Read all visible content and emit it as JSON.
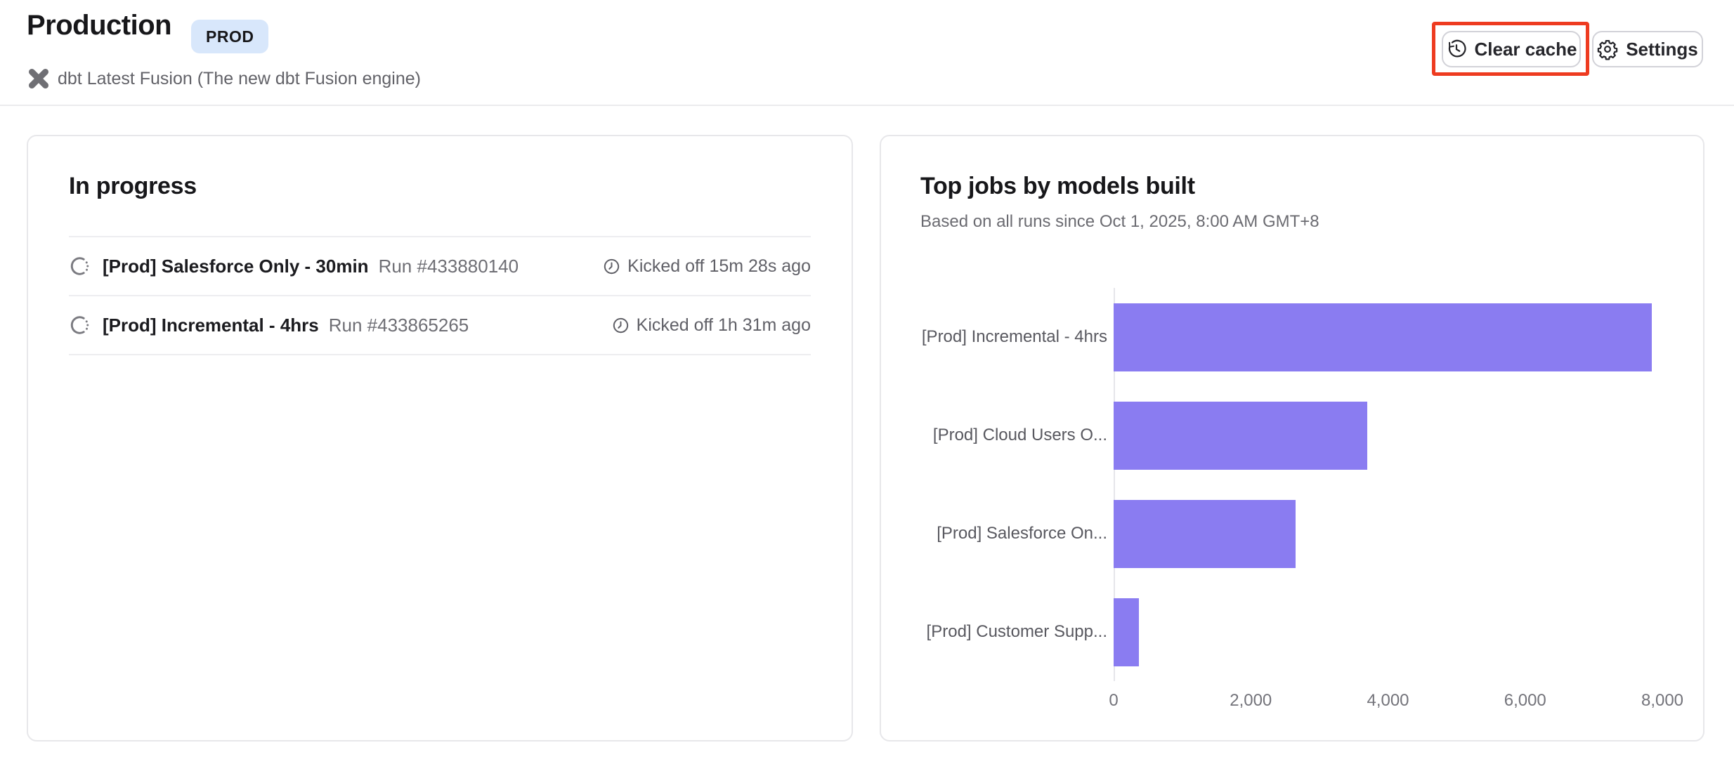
{
  "header": {
    "title": "Production",
    "env_badge": "PROD",
    "subtitle": "dbt Latest Fusion (The new dbt Fusion engine)",
    "clear_cache_label": "Clear cache",
    "settings_label": "Settings"
  },
  "in_progress": {
    "title": "In progress",
    "runs": [
      {
        "job": "[Prod] Salesforce Only - 30min",
        "run": "Run #433880140",
        "kicked_off": "Kicked off 15m 28s ago"
      },
      {
        "job": "[Prod] Incremental - 4hrs",
        "run": "Run #433865265",
        "kicked_off": "Kicked off 1h 31m ago"
      }
    ]
  },
  "chart_card": {
    "title": "Top jobs by models built",
    "subtitle": "Based on all runs since Oct 1, 2025, 8:00 AM GMT+8"
  },
  "chart_data": {
    "type": "bar",
    "orientation": "horizontal",
    "title": "Top jobs by models built",
    "subtitle": "Based on all runs since Oct 1, 2025, 8:00 AM GMT+8",
    "categories": [
      "[Prod] Incremental - 4hrs",
      "[Prod] Cloud Users O...",
      "[Prod] Salesforce On...",
      "[Prod] Customer Supp..."
    ],
    "values": [
      7850,
      3700,
      2650,
      370
    ],
    "xlim": [
      0,
      8000
    ],
    "x_ticks": [
      0,
      2000,
      4000,
      6000,
      8000
    ],
    "x_tick_labels": [
      "0",
      "2,000",
      "4,000",
      "6,000",
      "8,000"
    ],
    "bar_color": "#8a7cf1",
    "grid": false,
    "legend": false
  },
  "colors": {
    "accent_purple": "#8a7cf1",
    "badge_bg": "#d8e7fb",
    "highlight_red": "#ee3b20"
  }
}
